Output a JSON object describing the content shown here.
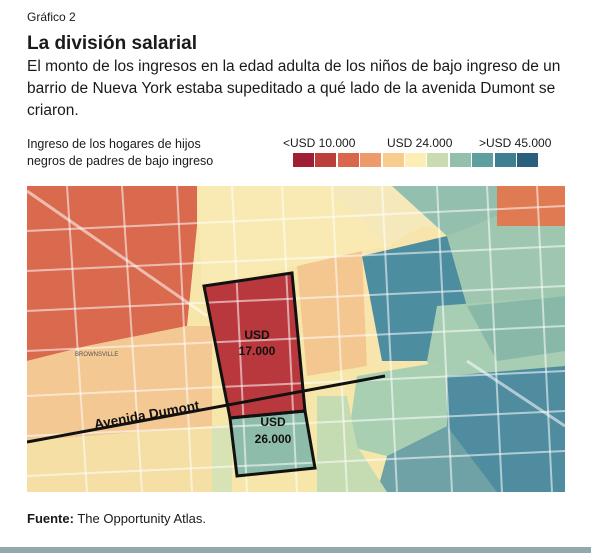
{
  "header": {
    "kicker": "Gráfico 2",
    "title": "La división salarial",
    "subtitle": "El monto de los ingresos en la edad adulta de los niños de bajo ingreso de un barrio de Nueva York estaba supeditado a qué lado de la avenida Dumont se criaron."
  },
  "legend": {
    "title_line1": "Ingreso de los hogares de hijos",
    "title_line2": "negros de padres de bajo ingreso",
    "label_low": "<USD 10.000",
    "label_mid": "USD 24.000",
    "label_high": ">USD 45.000",
    "colors": [
      "#9e1f33",
      "#bd3f3c",
      "#d9674f",
      "#ee9a6b",
      "#f8cc8c",
      "#fbeeb6",
      "#c8dcb0",
      "#93c0ad",
      "#5f9ea0",
      "#3f7f93",
      "#2a5f7e"
    ]
  },
  "map": {
    "avenue_label": "Avenida Dumont",
    "north_box_value_line1": "USD",
    "north_box_value_line2": "17.000",
    "south_box_value_line1": "USD",
    "south_box_value_line2": "26.000",
    "neighborhood_label": "BROWNSVILLE"
  },
  "footer": {
    "source_label": "Fuente:",
    "source_text": "The Opportunity Atlas."
  }
}
